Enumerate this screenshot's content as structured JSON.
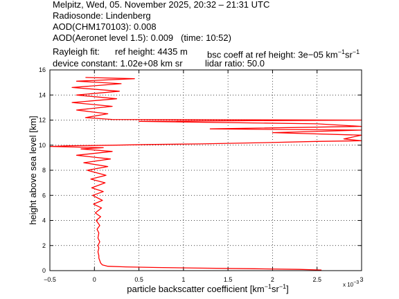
{
  "header": {
    "line1": "Melpitz, Wed, 05. November 2025, 20:32 – 21:31 UTC",
    "line2": "Radiosonde: Lindenberg",
    "line3": "AOD(CHM170103): 0.008",
    "line4": "AOD(Aeronet level 1.5): 0.009   (time: 10:52)",
    "rayleigh_label": "Rayleigh fit:",
    "ref_height": "ref height: 4435 m",
    "bsc_coeff": "bsc coeff at ref height: 3e−05 km",
    "bsc_coeff_unit1": "−1",
    "bsc_coeff_unit2": "sr",
    "bsc_coeff_unit3": "−1",
    "device_constant": "device constant: 1.02e+08 km sr",
    "lidar_ratio": "lidar ratio: 50.0"
  },
  "chart_data": {
    "type": "line",
    "xlabel": "particle backscatter coefficient [km",
    "xlabel_sup1": "−1",
    "xlabel_mid": "sr",
    "xlabel_sup2": "−1",
    "xlabel_end": "]",
    "ylabel": "height above sea level [km]",
    "x_multiplier": "x 10",
    "x_multiplier_exp": "−3",
    "xlim": [
      -0.5,
      3
    ],
    "ylim": [
      0,
      16
    ],
    "xticks": [
      "−0.5",
      "0",
      "0.5",
      "1",
      "1.5",
      "2",
      "2.5",
      "3"
    ],
    "xtick_values": [
      -0.5,
      0,
      0.5,
      1,
      1.5,
      2,
      2.5,
      3
    ],
    "yticks": [
      "0",
      "2",
      "4",
      "6",
      "8",
      "10",
      "12",
      "14",
      "16"
    ],
    "ytick_values": [
      0,
      2,
      4,
      6,
      8,
      10,
      12,
      14,
      16
    ],
    "grid": true,
    "line_color": "#ff0000",
    "series": [
      {
        "points": [
          [
            2.55,
            0.05
          ],
          [
            2.3,
            0.1
          ],
          [
            1.8,
            0.15
          ],
          [
            1.2,
            0.2
          ],
          [
            0.7,
            0.25
          ],
          [
            0.35,
            0.3
          ],
          [
            0.15,
            0.35
          ],
          [
            0.09,
            0.45
          ],
          [
            0.07,
            0.6
          ],
          [
            0.06,
            0.8
          ],
          [
            0.05,
            1.0
          ],
          [
            0.05,
            1.2
          ],
          [
            0.04,
            1.5
          ],
          [
            0.05,
            1.8
          ],
          [
            0.04,
            2.0
          ],
          [
            0.06,
            2.3
          ],
          [
            0.04,
            2.6
          ],
          [
            0.05,
            3.0
          ],
          [
            0.03,
            3.3
          ],
          [
            0.06,
            3.6
          ],
          [
            0.02,
            4.0
          ],
          [
            0.07,
            4.3
          ],
          [
            0.01,
            4.6
          ],
          [
            0.08,
            5.0
          ],
          [
            -0.01,
            5.3
          ],
          [
            0.09,
            5.6
          ],
          [
            -0.02,
            6.0
          ],
          [
            0.1,
            6.3
          ],
          [
            -0.03,
            6.6
          ],
          [
            0.12,
            7.0
          ],
          [
            -0.04,
            7.3
          ],
          [
            0.13,
            7.6
          ],
          [
            -0.08,
            8.0
          ],
          [
            0.15,
            8.3
          ],
          [
            -0.12,
            8.6
          ],
          [
            0.18,
            8.9
          ],
          [
            -0.2,
            9.2
          ],
          [
            0.2,
            9.5
          ],
          [
            -0.15,
            9.7
          ],
          [
            0.1,
            9.8
          ],
          [
            -0.5,
            9.9
          ],
          [
            -0.3,
            9.95
          ],
          [
            0.2,
            10.0
          ],
          [
            0.6,
            10.05
          ],
          [
            1.2,
            10.1
          ],
          [
            1.9,
            10.2
          ],
          [
            2.5,
            10.3
          ],
          [
            3.0,
            10.35
          ],
          [
            2.8,
            10.5
          ],
          [
            3.0,
            10.8
          ],
          [
            2.0,
            11.0
          ],
          [
            3.0,
            11.2
          ],
          [
            1.3,
            11.3
          ],
          [
            3.0,
            11.5
          ],
          [
            2.5,
            11.7
          ],
          [
            0.5,
            11.9
          ],
          [
            3.0,
            12.0
          ],
          [
            0.2,
            12.05
          ],
          [
            -0.1,
            12.2
          ],
          [
            0.15,
            12.5
          ],
          [
            -0.2,
            12.8
          ],
          [
            0.2,
            13.1
          ],
          [
            -0.25,
            13.4
          ],
          [
            0.25,
            13.7
          ],
          [
            -0.2,
            14.0
          ],
          [
            0.28,
            14.3
          ],
          [
            -0.25,
            14.6
          ],
          [
            0.3,
            14.9
          ],
          [
            -0.2,
            15.1
          ],
          [
            0.45,
            15.3
          ],
          [
            -0.1,
            15.4
          ]
        ]
      }
    ]
  }
}
